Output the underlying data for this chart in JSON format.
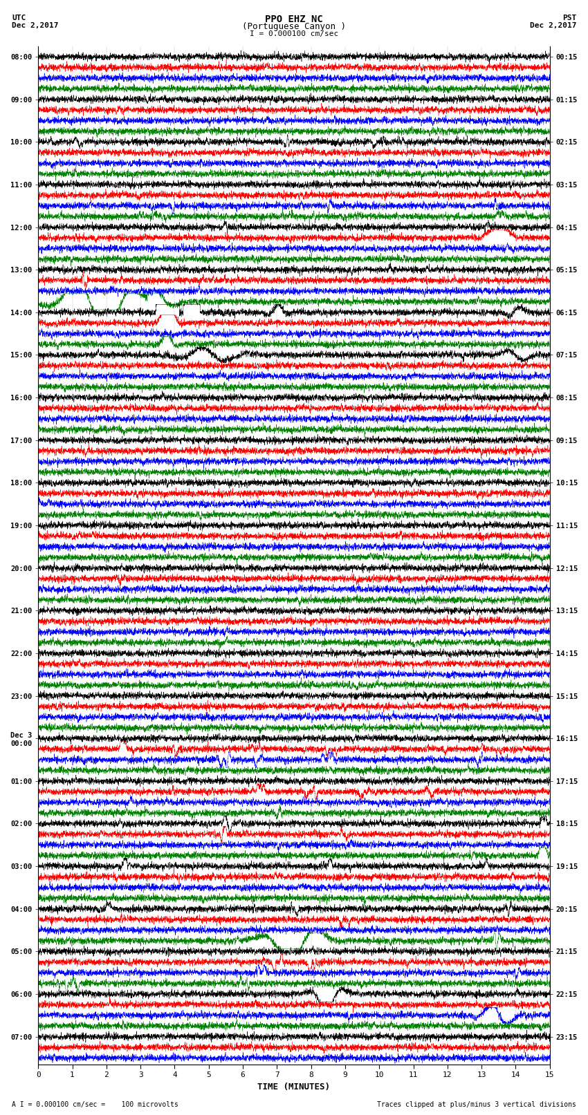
{
  "title_line1": "PPO EHZ NC",
  "title_line2": "(Portuguese Canyon )",
  "title_line3": "I = 0.000100 cm/sec",
  "utc_label": "UTC",
  "utc_date": "Dec 2,2017",
  "pst_label": "PST",
  "pst_date": "Dec 2,2017",
  "xlabel": "TIME (MINUTES)",
  "footer_left": "A I = 0.000100 cm/sec =    100 microvolts",
  "footer_right": "Traces clipped at plus/minus 3 vertical divisions",
  "xlim": [
    0,
    15
  ],
  "xticks": [
    0,
    1,
    2,
    3,
    4,
    5,
    6,
    7,
    8,
    9,
    10,
    11,
    12,
    13,
    14,
    15
  ],
  "trace_colors": [
    "black",
    "red",
    "blue",
    "green"
  ],
  "background_color": "white",
  "utc_times_left": [
    "08:00",
    "",
    "",
    "",
    "09:00",
    "",
    "",
    "",
    "10:00",
    "",
    "",
    "",
    "11:00",
    "",
    "",
    "",
    "12:00",
    "",
    "",
    "",
    "13:00",
    "",
    "",
    "",
    "14:00",
    "",
    "",
    "",
    "15:00",
    "",
    "",
    "",
    "16:00",
    "",
    "",
    "",
    "17:00",
    "",
    "",
    "",
    "18:00",
    "",
    "",
    "",
    "19:00",
    "",
    "",
    "",
    "20:00",
    "",
    "",
    "",
    "21:00",
    "",
    "",
    "",
    "22:00",
    "",
    "",
    "",
    "23:00",
    "",
    "",
    "",
    "Dec 3\n00:00",
    "",
    "",
    "",
    "01:00",
    "",
    "",
    "",
    "02:00",
    "",
    "",
    "",
    "03:00",
    "",
    "",
    "",
    "04:00",
    "",
    "",
    "",
    "05:00",
    "",
    "",
    "",
    "06:00",
    "",
    "",
    "",
    "07:00",
    "",
    ""
  ],
  "pst_times_right": [
    "00:15",
    "",
    "",
    "",
    "01:15",
    "",
    "",
    "",
    "02:15",
    "",
    "",
    "",
    "03:15",
    "",
    "",
    "",
    "04:15",
    "",
    "",
    "",
    "05:15",
    "",
    "",
    "",
    "06:15",
    "",
    "",
    "",
    "07:15",
    "",
    "",
    "",
    "08:15",
    "",
    "",
    "",
    "09:15",
    "",
    "",
    "",
    "10:15",
    "",
    "",
    "",
    "11:15",
    "",
    "",
    "",
    "12:15",
    "",
    "",
    "",
    "13:15",
    "",
    "",
    "",
    "14:15",
    "",
    "",
    "",
    "15:15",
    "",
    "",
    "",
    "16:15",
    "",
    "",
    "",
    "17:15",
    "",
    "",
    "",
    "18:15",
    "",
    "",
    "",
    "19:15",
    "",
    "",
    "",
    "20:15",
    "",
    "",
    "",
    "21:15",
    "",
    "",
    "",
    "22:15",
    "",
    "",
    "",
    "23:15",
    "",
    ""
  ],
  "noise_seed": 42,
  "base_amplitude": 0.25,
  "clip_divisions": 3
}
